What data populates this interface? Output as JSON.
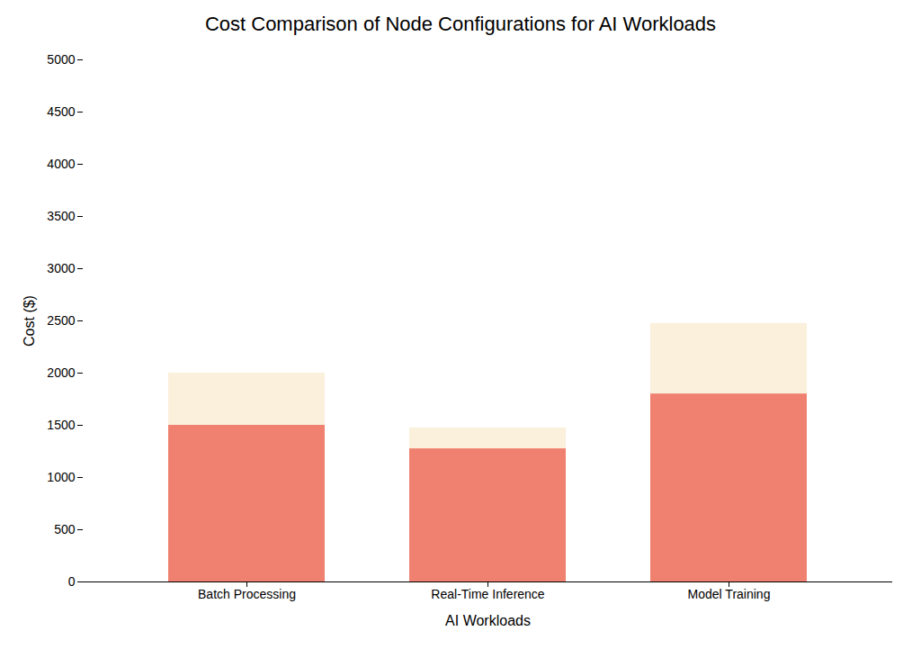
{
  "chart_data": {
    "type": "bar",
    "title": "Cost Comparison of Node Configurations for AI Workloads",
    "xlabel": "AI Workloads",
    "ylabel": "Cost ($)",
    "categories": [
      "Batch Processing",
      "Real-Time Inference",
      "Model Training"
    ],
    "series": [
      {
        "color": "#FAF0DC",
        "values": [
          2000,
          1475,
          2475
        ]
      },
      {
        "color": "#F08070",
        "values": [
          1500,
          1275,
          1800
        ]
      }
    ],
    "ylim": [
      0,
      5000
    ],
    "yticks": [
      0,
      500,
      1000,
      1500,
      2000,
      2500,
      3000,
      3500,
      4000,
      4500,
      5000
    ],
    "grid": false,
    "stacked": false
  }
}
